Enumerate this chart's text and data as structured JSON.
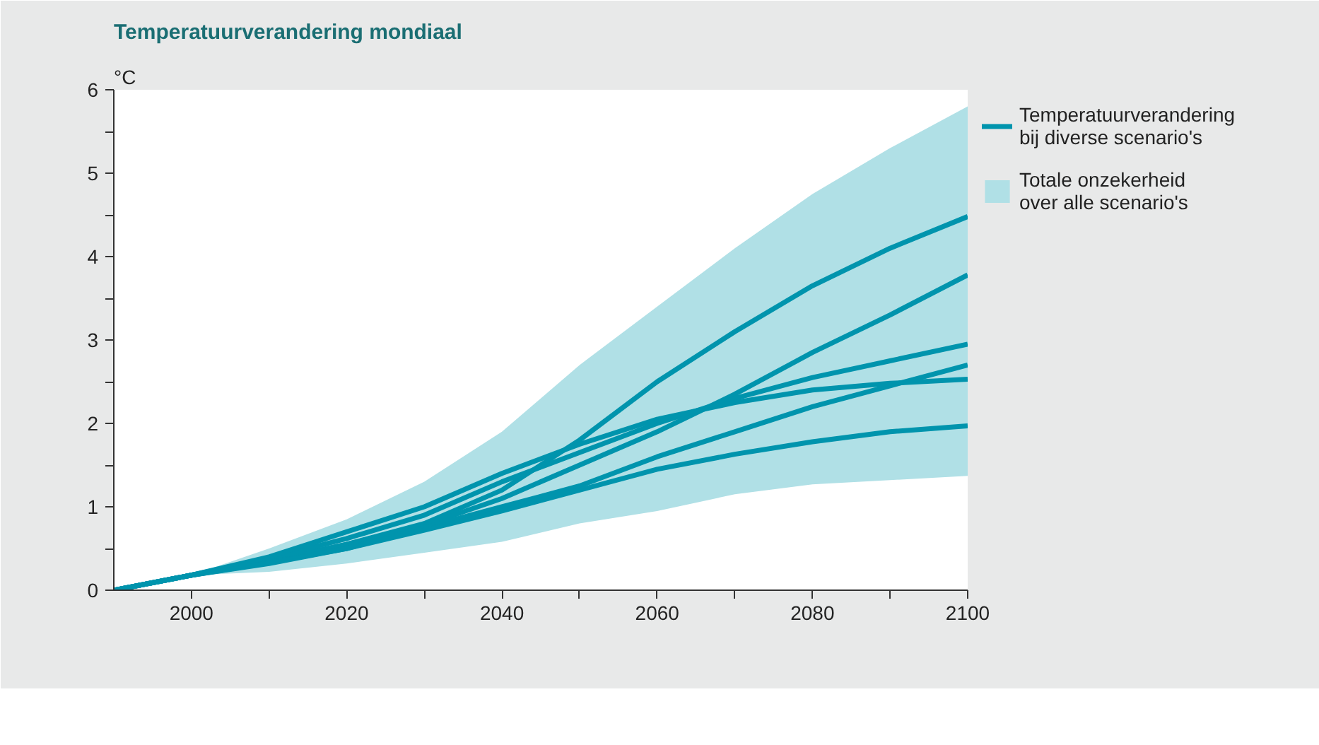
{
  "chart_data": {
    "type": "line",
    "title": "Temperatuurverandering mondiaal",
    "ylabel": "°C",
    "x": [
      1990,
      2000,
      2010,
      2020,
      2030,
      2040,
      2050,
      2060,
      2070,
      2080,
      2090,
      2100
    ],
    "xlim": [
      1990,
      2100
    ],
    "xticks": [
      2000,
      {
        "value": 2010,
        "label": null
      },
      2020,
      {
        "value": 2030,
        "label": null
      },
      2040,
      {
        "value": 2050,
        "label": null
      },
      2060,
      {
        "value": 2070,
        "label": null
      },
      2080,
      {
        "value": 2090,
        "label": null
      },
      2100
    ],
    "ylim": [
      0,
      6
    ],
    "yticks": [
      0,
      {
        "value": 0.5,
        "label": null
      },
      1,
      {
        "value": 1.5,
        "label": null
      },
      2,
      {
        "value": 2.5,
        "label": null
      },
      3,
      {
        "value": 3.5,
        "label": null
      },
      4,
      {
        "value": 4.5,
        "label": null
      },
      5,
      {
        "value": 5.5,
        "label": null
      },
      6
    ],
    "grid": false,
    "legend": "right",
    "series": [
      {
        "type": "area",
        "name": "Totale onzekerheid over alle scenario's",
        "color": "#b0e0e6",
        "lower": [
          0,
          0.18,
          0.22,
          0.32,
          0.45,
          0.58,
          0.8,
          0.95,
          1.15,
          1.27,
          1.32,
          1.37
        ],
        "values": [
          null,
          null,
          null,
          null,
          null,
          null,
          null,
          null,
          null,
          null,
          null,
          null
        ],
        "upper": [
          0,
          0.18,
          0.5,
          0.85,
          1.3,
          1.9,
          2.7,
          3.4,
          4.1,
          4.75,
          5.3,
          5.8
        ]
      },
      {
        "name": "Temperatuurverandering bij diverse scenario's",
        "color": "#0094ad",
        "values": [
          0,
          0.18,
          0.35,
          0.55,
          0.8,
          1.2,
          1.8,
          2.5,
          3.1,
          3.65,
          4.1,
          4.48
        ]
      },
      {
        "color": "#0094ad",
        "values": [
          0,
          0.18,
          0.35,
          0.55,
          0.78,
          1.1,
          1.5,
          1.9,
          2.35,
          2.85,
          3.3,
          3.78
        ]
      },
      {
        "color": "#0094ad",
        "values": [
          0,
          0.18,
          0.38,
          0.62,
          0.9,
          1.3,
          1.65,
          2.0,
          2.3,
          2.55,
          2.75,
          2.95
        ]
      },
      {
        "color": "#0094ad",
        "values": [
          0,
          0.18,
          0.33,
          0.5,
          0.75,
          1.0,
          1.25,
          1.6,
          1.9,
          2.2,
          2.45,
          2.7
        ]
      },
      {
        "color": "#0094ad",
        "values": [
          0,
          0.18,
          0.4,
          0.7,
          1.0,
          1.4,
          1.75,
          2.05,
          2.25,
          2.4,
          2.48,
          2.53
        ]
      },
      {
        "color": "#0094ad",
        "values": [
          0,
          0.18,
          0.32,
          0.5,
          0.72,
          0.95,
          1.2,
          1.45,
          1.63,
          1.78,
          1.9,
          1.97
        ]
      }
    ]
  }
}
